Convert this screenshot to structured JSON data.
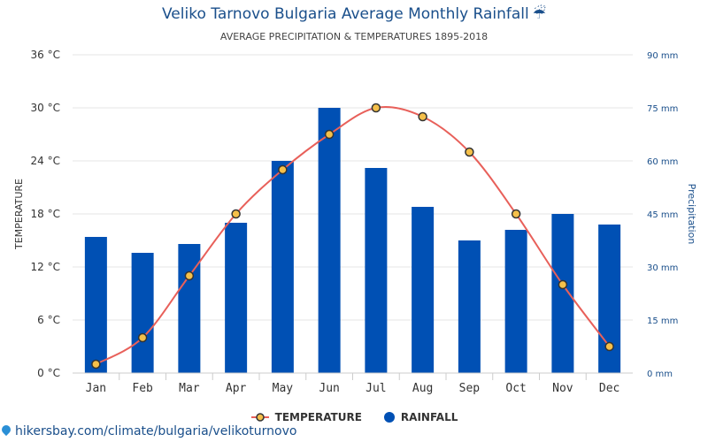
{
  "title": "Veliko Tarnovo Bulgaria Average Monthly Rainfall",
  "title_icon": "umbrella-icon",
  "subtitle": "AVERAGE PRECIPITATION & TEMPERATURES 1895-2018",
  "footer": "hikersbay.com/climate/bulgaria/velikoturnovo",
  "colors": {
    "rainfall": "#0050b4",
    "temperature_line": "#e8605a",
    "temperature_marker_fill": "#f5c04a",
    "temperature_marker_stroke": "#333333",
    "title": "#1a4f8b",
    "right_axis": "#1a4f8b",
    "grid": "#e6e6e6"
  },
  "chart_data": {
    "type": "bar",
    "categories": [
      "Jan",
      "Feb",
      "Mar",
      "Apr",
      "May",
      "Jun",
      "Jul",
      "Aug",
      "Sep",
      "Oct",
      "Nov",
      "Dec"
    ],
    "title": "Veliko Tarnovo Bulgaria Average Monthly Rainfall",
    "subtitle": "AVERAGE PRECIPITATION & TEMPERATURES 1895-2018",
    "ylabel_left": "TEMPERATURE",
    "ylabel_right": "Precipitation",
    "ylim_left": [
      0,
      36
    ],
    "ylim_right": [
      0,
      90
    ],
    "yticks_left": [
      "0 °C",
      "6 °C",
      "12 °C",
      "18 °C",
      "24 °C",
      "30 °C",
      "36 °C"
    ],
    "yticks_right": [
      "0 mm",
      "15 mm",
      "30 mm",
      "45 mm",
      "60 mm",
      "75 mm",
      "90 mm"
    ],
    "grid": true,
    "legend_position": "bottom",
    "series": [
      {
        "name": "RAINFALL",
        "type": "bar",
        "axis": "right",
        "unit": "mm",
        "values": [
          38.5,
          34,
          36.5,
          42.5,
          60,
          75,
          58,
          47,
          37.5,
          40.5,
          45,
          42
        ]
      },
      {
        "name": "TEMPERATURE",
        "type": "line",
        "axis": "left",
        "unit": "°C",
        "values": [
          1,
          4,
          11,
          18,
          23,
          27,
          30,
          29,
          25,
          18,
          10,
          3
        ]
      }
    ]
  }
}
